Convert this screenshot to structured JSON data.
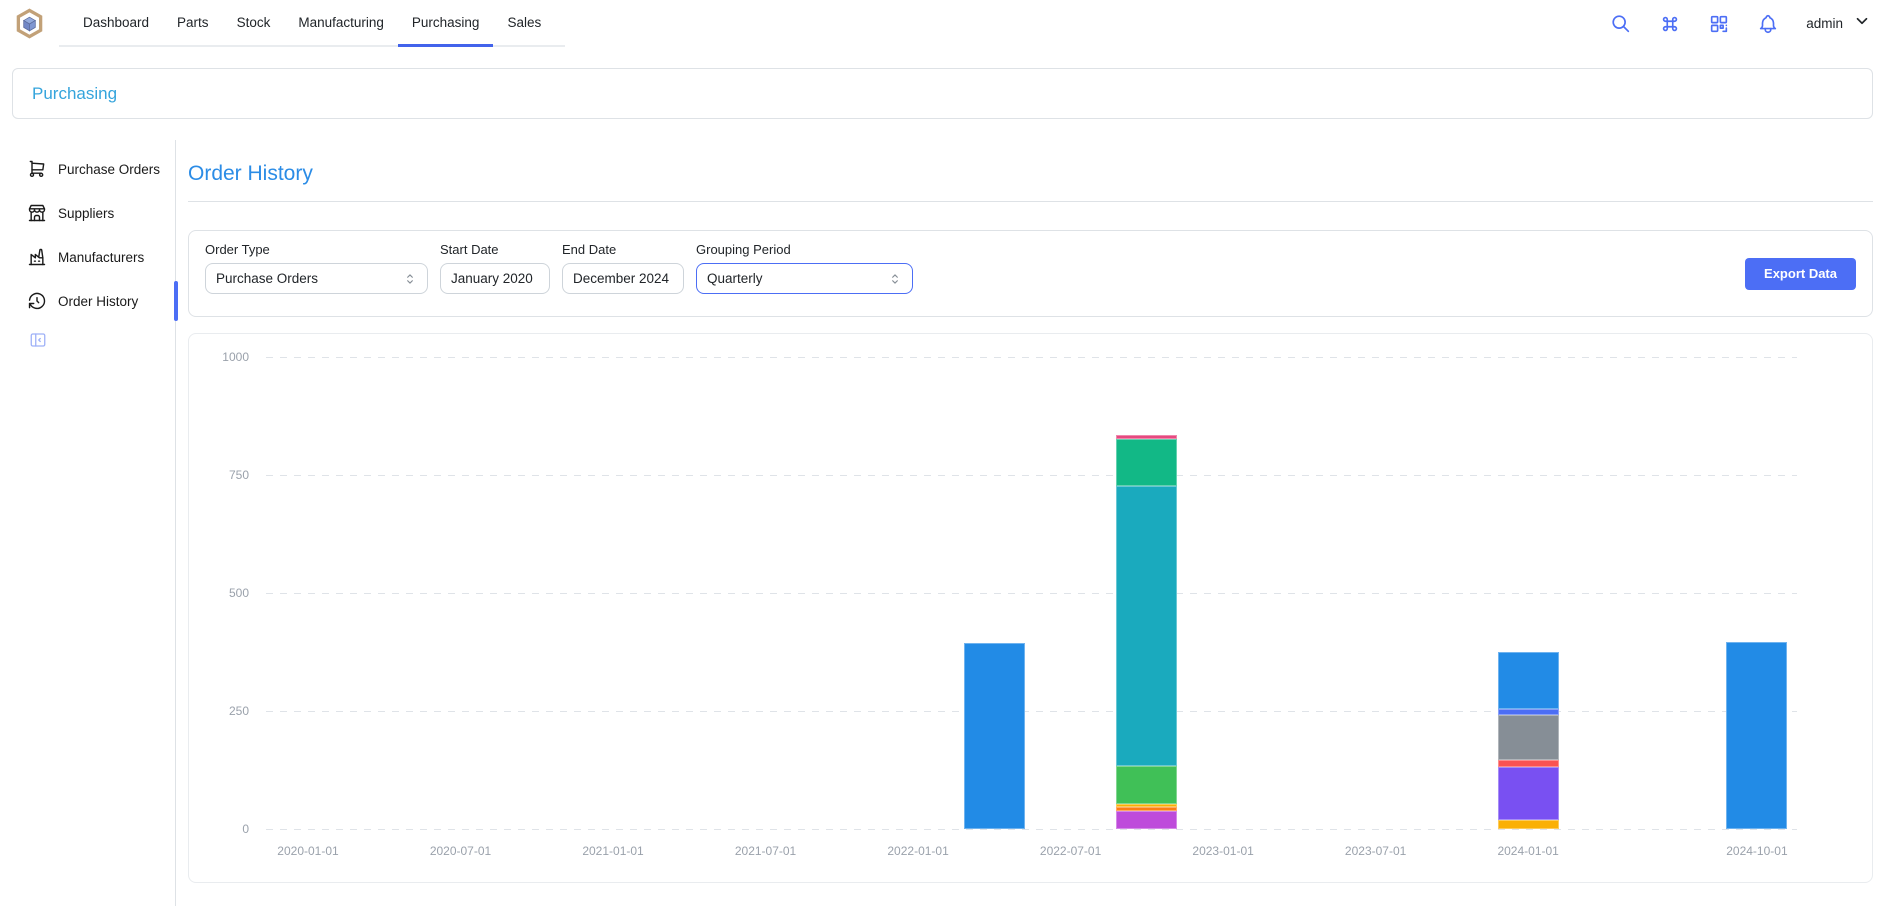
{
  "navbar": {
    "tabs": [
      {
        "label": "Dashboard",
        "active": false
      },
      {
        "label": "Parts",
        "active": false
      },
      {
        "label": "Stock",
        "active": false
      },
      {
        "label": "Manufacturing",
        "active": false
      },
      {
        "label": "Purchasing",
        "active": true
      },
      {
        "label": "Sales",
        "active": false
      }
    ],
    "icons": [
      "search",
      "command-palette",
      "qr-scan",
      "notifications"
    ],
    "user": "admin"
  },
  "breadcrumb": {
    "label": "Purchasing"
  },
  "sidebar": {
    "items": [
      {
        "label": "Purchase Orders",
        "icon": "shopping-cart",
        "active": false
      },
      {
        "label": "Suppliers",
        "icon": "building-store",
        "active": false
      },
      {
        "label": "Manufacturers",
        "icon": "building-factory",
        "active": false
      },
      {
        "label": "Order History",
        "icon": "history",
        "active": true
      }
    ],
    "collapse_icon": "sidebar-collapse"
  },
  "page": {
    "title": "Order History"
  },
  "filters": {
    "order_type": {
      "label": "Order Type",
      "value": "Purchase Orders"
    },
    "start_date": {
      "label": "Start Date",
      "value": "January 2020"
    },
    "end_date": {
      "label": "End Date",
      "value": "December 2024"
    },
    "grouping_period": {
      "label": "Grouping Period",
      "value": "Quarterly"
    },
    "export_label": "Export Data"
  },
  "colors": {
    "accent": "#4c6ef5",
    "active_tab_underline": "#4263eb",
    "page_title": "#2b8ce6",
    "breadcrumb_link": "#35a4dc"
  },
  "chart_data": {
    "type": "bar",
    "stacked": true,
    "title": "",
    "xlabel": "",
    "ylabel": "",
    "grid": true,
    "legend": false,
    "ylim": [
      0,
      1000
    ],
    "yticks": [
      0,
      250,
      500,
      750,
      1000
    ],
    "categories": [
      "2020-01-01",
      "2020-04-01",
      "2020-07-01",
      "2020-10-01",
      "2021-01-01",
      "2021-04-01",
      "2021-07-01",
      "2021-10-01",
      "2022-01-01",
      "2022-04-01",
      "2022-07-01",
      "2022-10-01",
      "2023-01-01",
      "2023-04-01",
      "2023-07-01",
      "2023-10-01",
      "2024-01-01",
      "2024-04-01",
      "2024-07-01",
      "2024-10-01"
    ],
    "x_ticks": [
      {
        "index": 0,
        "label": "2020-01-01"
      },
      {
        "index": 2,
        "label": "2020-07-01"
      },
      {
        "index": 4,
        "label": "2021-01-01"
      },
      {
        "index": 6,
        "label": "2021-07-01"
      },
      {
        "index": 8,
        "label": "2022-01-01"
      },
      {
        "index": 10,
        "label": "2022-07-01"
      },
      {
        "index": 12,
        "label": "2023-01-01"
      },
      {
        "index": 14,
        "label": "2023-07-01"
      },
      {
        "index": 16,
        "label": "2024-01-01"
      },
      {
        "index": 19,
        "label": "2024-10-01"
      }
    ],
    "bars": [
      {
        "category": "2022-04-01",
        "index": 9,
        "total": 395,
        "segments": [
          {
            "color": "#228be6",
            "value": 395
          }
        ]
      },
      {
        "category": "2022-10-01",
        "index": 11,
        "total": 835,
        "segments": [
          {
            "color": "#be4bdb",
            "value": 38
          },
          {
            "color": "#fd7e14",
            "value": 8
          },
          {
            "color": "#fab005",
            "value": 8
          },
          {
            "color": "#40c057",
            "value": 80
          },
          {
            "color": "#1aaabe",
            "value": 592
          },
          {
            "color": "#12b886",
            "value": 100
          },
          {
            "color": "#e64980",
            "value": 9
          }
        ]
      },
      {
        "category": "2024-01-01",
        "index": 16,
        "total": 375,
        "segments": [
          {
            "color": "#fab005",
            "value": 20
          },
          {
            "color": "#7950f2",
            "value": 112
          },
          {
            "color": "#fa5252",
            "value": 15
          },
          {
            "color": "#868e96",
            "value": 95
          },
          {
            "color": "#4c6ef5",
            "value": 13
          },
          {
            "color": "#228be6",
            "value": 120
          }
        ]
      },
      {
        "category": "2024-10-01",
        "index": 19,
        "total": 397,
        "segments": [
          {
            "color": "#228be6",
            "value": 397
          }
        ]
      }
    ]
  }
}
